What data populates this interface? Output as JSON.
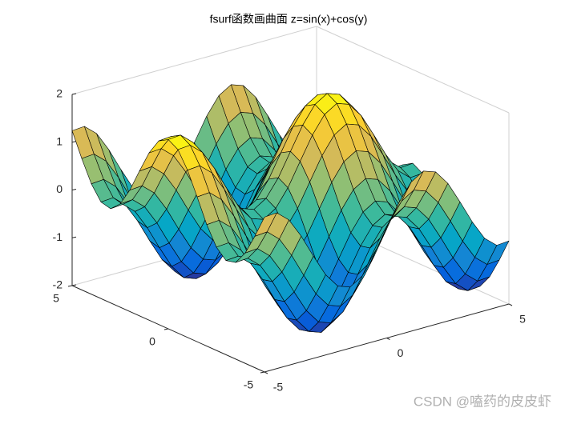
{
  "chart_data": {
    "type": "surface3d",
    "title": "fsurf函数画曲面 z=sin(x)+cos(y)",
    "watermark": "CSDN @嗑药的皮皮虾",
    "x": [
      -5,
      -4.5,
      -4,
      -3.5,
      -3,
      -2.5,
      -2,
      -1.5,
      -1,
      -0.5,
      0,
      0.5,
      1,
      1.5,
      2,
      2.5,
      3,
      3.5,
      4,
      4.5,
      5
    ],
    "y": [
      -5,
      -4.5,
      -4,
      -3.5,
      -3,
      -2.5,
      -2,
      -1.5,
      -1,
      -0.5,
      0,
      0.5,
      1,
      1.5,
      2,
      2.5,
      3,
      3.5,
      4,
      4.5,
      5
    ],
    "z": [
      [
        1.24,
        1.26,
        1.04,
        0.63,
        0.14,
        -0.32,
        -0.63,
        -0.72,
        -0.56,
        -0.2,
        0.28,
        0.76,
        1.12,
        1.28,
        1.19,
        0.88,
        0.42,
        -0.07,
        -0.48,
        -0.7,
        -0.68
      ],
      [
        0.75,
        0.77,
        0.55,
        0.14,
        -0.35,
        -0.81,
        -1.12,
        -1.21,
        -1.05,
        -0.69,
        -0.21,
        0.27,
        0.63,
        0.79,
        0.7,
        0.39,
        -0.07,
        -0.56,
        -0.97,
        -1.19,
        -1.17
      ],
      [
        0.31,
        0.33,
        0.11,
        -0.3,
        -0.79,
        -1.25,
        -1.56,
        -1.65,
        -1.49,
        -1.13,
        -0.65,
        -0.17,
        0.19,
        0.35,
        0.26,
        -0.05,
        -0.51,
        -1,
        -1.41,
        -1.63,
        -1.61
      ],
      [
        0.02,
        0.04,
        -0.18,
        -0.59,
        -1.08,
        -1.54,
        -1.85,
        -1.94,
        -1.78,
        -1.42,
        -0.94,
        -0.46,
        -0.1,
        0.06,
        -0.03,
        -0.34,
        -0.8,
        -1.29,
        -1.7,
        -1.92,
        -1.9
      ],
      [
        -0.03,
        -0.01,
        -0.23,
        -0.64,
        -1.13,
        -1.59,
        -1.9,
        -1.99,
        -1.83,
        -1.47,
        -0.99,
        -0.51,
        -0.15,
        0.01,
        -0.08,
        -0.39,
        -0.85,
        -1.34,
        -1.75,
        -1.97,
        -1.95
      ],
      [
        0.16,
        0.18,
        -0.04,
        -0.45,
        -0.94,
        -1.4,
        -1.71,
        -1.8,
        -1.64,
        -1.28,
        -0.8,
        -0.32,
        0.04,
        0.2,
        0.11,
        -0.2,
        -0.66,
        -1.15,
        -1.56,
        -1.78,
        -1.76
      ],
      [
        0.54,
        0.56,
        0.34,
        -0.07,
        -0.56,
        -1.02,
        -1.33,
        -1.42,
        -1.26,
        -0.9,
        -0.42,
        0.06,
        0.42,
        0.58,
        0.49,
        0.18,
        -0.28,
        -0.77,
        -1.18,
        -1.4,
        -1.38
      ],
      [
        1.03,
        1.05,
        0.83,
        0.42,
        -0.07,
        -0.53,
        -0.84,
        -0.93,
        -0.77,
        -0.41,
        0.07,
        0.55,
        0.91,
        1.07,
        0.98,
        0.67,
        0.21,
        -0.28,
        -0.69,
        -0.91,
        -0.89
      ],
      [
        1.5,
        1.52,
        1.3,
        0.89,
        0.4,
        -0.06,
        -0.37,
        -0.46,
        -0.3,
        0.06,
        0.54,
        1.02,
        1.38,
        1.54,
        1.45,
        1.14,
        0.68,
        0.19,
        -0.22,
        -0.44,
        -0.42
      ],
      [
        1.84,
        1.86,
        1.64,
        1.23,
        0.74,
        0.28,
        -0.03,
        -0.12,
        0.04,
        0.4,
        0.88,
        1.36,
        1.72,
        1.88,
        1.79,
        1.48,
        1.02,
        0.53,
        0.12,
        -0.1,
        -0.08
      ],
      [
        1.96,
        1.98,
        1.76,
        1.35,
        0.86,
        0.4,
        0.09,
        0,
        0.16,
        0.52,
        1,
        1.48,
        1.84,
        2,
        1.91,
        1.6,
        1.14,
        0.65,
        0.24,
        0.02,
        0.04
      ],
      [
        1.84,
        1.86,
        1.64,
        1.23,
        0.74,
        0.28,
        -0.03,
        -0.12,
        0.04,
        0.4,
        0.88,
        1.36,
        1.72,
        1.88,
        1.79,
        1.48,
        1.02,
        0.53,
        0.12,
        -0.1,
        -0.08
      ],
      [
        1.5,
        1.52,
        1.3,
        0.89,
        0.4,
        -0.06,
        -0.37,
        -0.46,
        -0.3,
        0.06,
        0.54,
        1.02,
        1.38,
        1.54,
        1.45,
        1.14,
        0.68,
        0.19,
        -0.22,
        -0.44,
        -0.42
      ],
      [
        1.03,
        1.05,
        0.83,
        0.42,
        -0.07,
        -0.53,
        -0.84,
        -0.93,
        -0.77,
        -0.41,
        0.07,
        0.55,
        0.91,
        1.07,
        0.98,
        0.67,
        0.21,
        -0.28,
        -0.69,
        -0.91,
        -0.89
      ],
      [
        0.54,
        0.56,
        0.34,
        -0.07,
        -0.56,
        -1.02,
        -1.33,
        -1.42,
        -1.26,
        -0.9,
        -0.42,
        0.06,
        0.42,
        0.58,
        0.49,
        0.18,
        -0.28,
        -0.77,
        -1.18,
        -1.4,
        -1.38
      ],
      [
        0.16,
        0.18,
        -0.04,
        -0.45,
        -0.94,
        -1.4,
        -1.71,
        -1.8,
        -1.64,
        -1.28,
        -0.8,
        -0.32,
        0.04,
        0.2,
        0.11,
        -0.2,
        -0.66,
        -1.15,
        -1.56,
        -1.78,
        -1.76
      ],
      [
        -0.03,
        -0.01,
        -0.23,
        -0.64,
        -1.13,
        -1.59,
        -1.9,
        -1.99,
        -1.83,
        -1.47,
        -0.99,
        -0.51,
        -0.15,
        0.01,
        -0.08,
        -0.39,
        -0.85,
        -1.34,
        -1.75,
        -1.97,
        -1.95
      ],
      [
        0.02,
        0.04,
        -0.18,
        -0.59,
        -1.08,
        -1.54,
        -1.85,
        -1.94,
        -1.78,
        -1.42,
        -0.94,
        -0.46,
        -0.1,
        0.06,
        -0.03,
        -0.34,
        -0.8,
        -1.29,
        -1.7,
        -1.92,
        -1.9
      ],
      [
        0.31,
        0.33,
        0.11,
        -0.3,
        -0.79,
        -1.25,
        -1.56,
        -1.65,
        -1.49,
        -1.13,
        -0.65,
        -0.17,
        0.19,
        0.35,
        0.26,
        -0.05,
        -0.51,
        -1,
        -1.41,
        -1.63,
        -1.61
      ],
      [
        0.75,
        0.77,
        0.55,
        0.14,
        -0.35,
        -0.81,
        -1.12,
        -1.21,
        -1.05,
        -0.69,
        -0.21,
        0.27,
        0.63,
        0.79,
        0.7,
        0.39,
        -0.07,
        -0.56,
        -0.97,
        -1.19,
        -1.17
      ],
      [
        1.24,
        1.26,
        1.04,
        0.63,
        0.14,
        -0.32,
        -0.63,
        -0.72,
        -0.56,
        -0.2,
        0.28,
        0.76,
        1.12,
        1.28,
        1.19,
        0.88,
        0.42,
        -0.07,
        -0.48,
        -0.7,
        -0.68
      ]
    ],
    "xlim": [
      -5,
      5
    ],
    "ylim": [
      -5,
      5
    ],
    "zlim": [
      -2,
      2
    ],
    "xticks": [
      -5,
      0,
      5
    ],
    "yticks": [
      -5,
      0,
      5
    ],
    "zticks": [
      -2,
      -1,
      0,
      1,
      2
    ],
    "colormap": [
      "#352a87",
      "#0363e1",
      "#1485d4",
      "#06a7c6",
      "#38b99e",
      "#92bf73",
      "#d9ba56",
      "#fcce2e",
      "#f9fb0e"
    ],
    "edge_color": "#000000",
    "box": true
  }
}
